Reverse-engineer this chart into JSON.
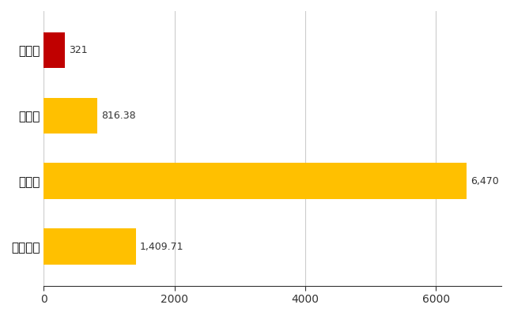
{
  "categories": [
    "平内町",
    "県平均",
    "県最大",
    "全国平均"
  ],
  "values": [
    321,
    816.38,
    6470,
    1409.71
  ],
  "colors": [
    "#C00000",
    "#FFC000",
    "#FFC000",
    "#FFC000"
  ],
  "labels": [
    "321",
    "816.38",
    "6,470",
    "1,409.71"
  ],
  "xlim": [
    0,
    7000
  ],
  "xticks": [
    0,
    2000,
    4000,
    6000
  ],
  "background_color": "#FFFFFF",
  "grid_color": "#CCCCCC",
  "bar_height": 0.55
}
